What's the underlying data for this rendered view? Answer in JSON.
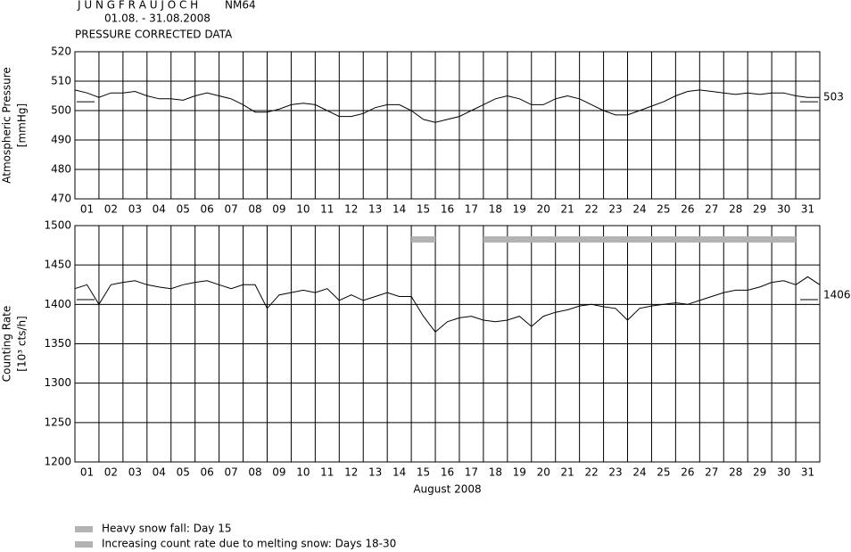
{
  "header": {
    "station": "J U N G F R A U J O C H",
    "detector": "NM64",
    "period": "01.08. - 31.08.2008",
    "subtitle": "PRESSURE CORRECTED DATA"
  },
  "chart_data": [
    {
      "type": "line",
      "ylabel": [
        "Atmospheric Pressure",
        "[mmHg]"
      ],
      "color": "#000000",
      "grid": true,
      "xlim": [
        1,
        32
      ],
      "xticks": [
        {
          "value": 1,
          "label": "01"
        },
        {
          "value": 2,
          "label": "02"
        },
        {
          "value": 3,
          "label": "03"
        },
        {
          "value": 4,
          "label": "04"
        },
        {
          "value": 5,
          "label": "05"
        },
        {
          "value": 6,
          "label": "06"
        },
        {
          "value": 7,
          "label": "07"
        },
        {
          "value": 8,
          "label": "08"
        },
        {
          "value": 9,
          "label": "09"
        },
        {
          "value": 10,
          "label": "10"
        },
        {
          "value": 11,
          "label": "11"
        },
        {
          "value": 12,
          "label": "12"
        },
        {
          "value": 13,
          "label": "13"
        },
        {
          "value": 14,
          "label": "14"
        },
        {
          "value": 15,
          "label": "15"
        },
        {
          "value": 16,
          "label": "16"
        },
        {
          "value": 17,
          "label": "17"
        },
        {
          "value": 18,
          "label": "18"
        },
        {
          "value": 19,
          "label": "19"
        },
        {
          "value": 20,
          "label": "20"
        },
        {
          "value": 21,
          "label": "21"
        },
        {
          "value": 22,
          "label": "22"
        },
        {
          "value": 23,
          "label": "23"
        },
        {
          "value": 24,
          "label": "24"
        },
        {
          "value": 25,
          "label": "25"
        },
        {
          "value": 26,
          "label": "26"
        },
        {
          "value": 27,
          "label": "27"
        },
        {
          "value": 28,
          "label": "28"
        },
        {
          "value": 29,
          "label": "29"
        },
        {
          "value": 30,
          "label": "30"
        },
        {
          "value": 31,
          "label": "31"
        }
      ],
      "ylim": [
        470,
        520
      ],
      "yticks": [
        470,
        480,
        490,
        500,
        510,
        520
      ],
      "reference": 503,
      "x": [
        1,
        1.5,
        2,
        2.5,
        3,
        3.5,
        4,
        4.5,
        5,
        5.5,
        6,
        6.5,
        7,
        7.5,
        8,
        8.5,
        9,
        9.5,
        10,
        10.5,
        11,
        11.5,
        12,
        12.5,
        13,
        13.5,
        14,
        14.5,
        15,
        15.5,
        16,
        16.5,
        17,
        17.5,
        18,
        18.5,
        19,
        19.5,
        20,
        20.5,
        21,
        21.5,
        22,
        22.5,
        23,
        23.5,
        24,
        24.5,
        25,
        25.5,
        26,
        26.5,
        27,
        27.5,
        28,
        28.5,
        29,
        29.5,
        30,
        30.5,
        31,
        31.5,
        32
      ],
      "values": [
        507,
        506,
        504.5,
        506,
        506,
        506.5,
        505,
        504,
        504,
        503.5,
        505,
        506,
        505,
        504,
        502,
        499.5,
        499.5,
        500.5,
        502,
        502.5,
        502,
        500,
        498,
        498,
        499,
        501,
        502,
        502,
        500,
        497,
        496,
        497,
        498,
        500,
        502,
        504,
        505,
        504,
        502,
        502,
        504,
        505,
        504,
        502,
        500,
        498.5,
        498.5,
        500,
        501.5,
        503,
        505,
        506.5,
        507,
        506.5,
        506,
        505.5,
        506,
        505.5,
        506,
        506,
        505,
        504.5,
        504.5
      ]
    },
    {
      "type": "line",
      "ylabel": [
        "Counting Rate",
        "[10³ cts/h]"
      ],
      "xlabel": "August 2008",
      "color": "#000000",
      "grid": true,
      "xlim": [
        1,
        32
      ],
      "xticks": [
        {
          "value": 1,
          "label": "01"
        },
        {
          "value": 2,
          "label": "02"
        },
        {
          "value": 3,
          "label": "03"
        },
        {
          "value": 4,
          "label": "04"
        },
        {
          "value": 5,
          "label": "05"
        },
        {
          "value": 6,
          "label": "06"
        },
        {
          "value": 7,
          "label": "07"
        },
        {
          "value": 8,
          "label": "08"
        },
        {
          "value": 9,
          "label": "09"
        },
        {
          "value": 10,
          "label": "10"
        },
        {
          "value": 11,
          "label": "11"
        },
        {
          "value": 12,
          "label": "12"
        },
        {
          "value": 13,
          "label": "13"
        },
        {
          "value": 14,
          "label": "14"
        },
        {
          "value": 15,
          "label": "15"
        },
        {
          "value": 16,
          "label": "16"
        },
        {
          "value": 17,
          "label": "17"
        },
        {
          "value": 18,
          "label": "18"
        },
        {
          "value": 19,
          "label": "19"
        },
        {
          "value": 20,
          "label": "20"
        },
        {
          "value": 21,
          "label": "21"
        },
        {
          "value": 22,
          "label": "22"
        },
        {
          "value": 23,
          "label": "23"
        },
        {
          "value": 24,
          "label": "24"
        },
        {
          "value": 25,
          "label": "25"
        },
        {
          "value": 26,
          "label": "26"
        },
        {
          "value": 27,
          "label": "27"
        },
        {
          "value": 28,
          "label": "28"
        },
        {
          "value": 29,
          "label": "29"
        },
        {
          "value": 30,
          "label": "30"
        },
        {
          "value": 31,
          "label": "31"
        }
      ],
      "ylim": [
        1200,
        1500
      ],
      "yticks": [
        1200,
        1250,
        1300,
        1350,
        1400,
        1450,
        1500
      ],
      "reference": 1406,
      "band_color": "#b3b3b3",
      "bands": [
        {
          "x": [
            15,
            16
          ],
          "label": "Heavy snow fall: Day 15"
        },
        {
          "x": [
            18,
            31
          ],
          "label": "Increasing count rate due to melting snow: Days 18-30"
        }
      ],
      "x": [
        1,
        1.5,
        2,
        2.5,
        3,
        3.5,
        4,
        4.5,
        5,
        5.5,
        6,
        6.5,
        7,
        7.5,
        8,
        8.5,
        9,
        9.5,
        10,
        10.5,
        11,
        11.5,
        12,
        12.5,
        13,
        13.5,
        14,
        14.5,
        15,
        15.5,
        16,
        16.5,
        17,
        17.5,
        18,
        18.5,
        19,
        19.5,
        20,
        20.5,
        21,
        21.5,
        22,
        22.5,
        23,
        23.5,
        24,
        24.5,
        25,
        25.5,
        26,
        26.5,
        27,
        27.5,
        28,
        28.5,
        29,
        29.5,
        30,
        30.5,
        31,
        31.5,
        32
      ],
      "values": [
        1420,
        1425,
        1400,
        1425,
        1428,
        1430,
        1425,
        1422,
        1420,
        1425,
        1428,
        1430,
        1425,
        1420,
        1425,
        1425,
        1395,
        1412,
        1415,
        1418,
        1415,
        1420,
        1405,
        1412,
        1405,
        1410,
        1415,
        1410,
        1410,
        1385,
        1365,
        1378,
        1383,
        1385,
        1380,
        1378,
        1380,
        1385,
        1372,
        1385,
        1390,
        1393,
        1398,
        1400,
        1397,
        1395,
        1380,
        1395,
        1398,
        1400,
        1402,
        1400,
        1405,
        1410,
        1415,
        1418,
        1418,
        1422,
        1428,
        1430,
        1425,
        1435,
        1425
      ]
    }
  ]
}
